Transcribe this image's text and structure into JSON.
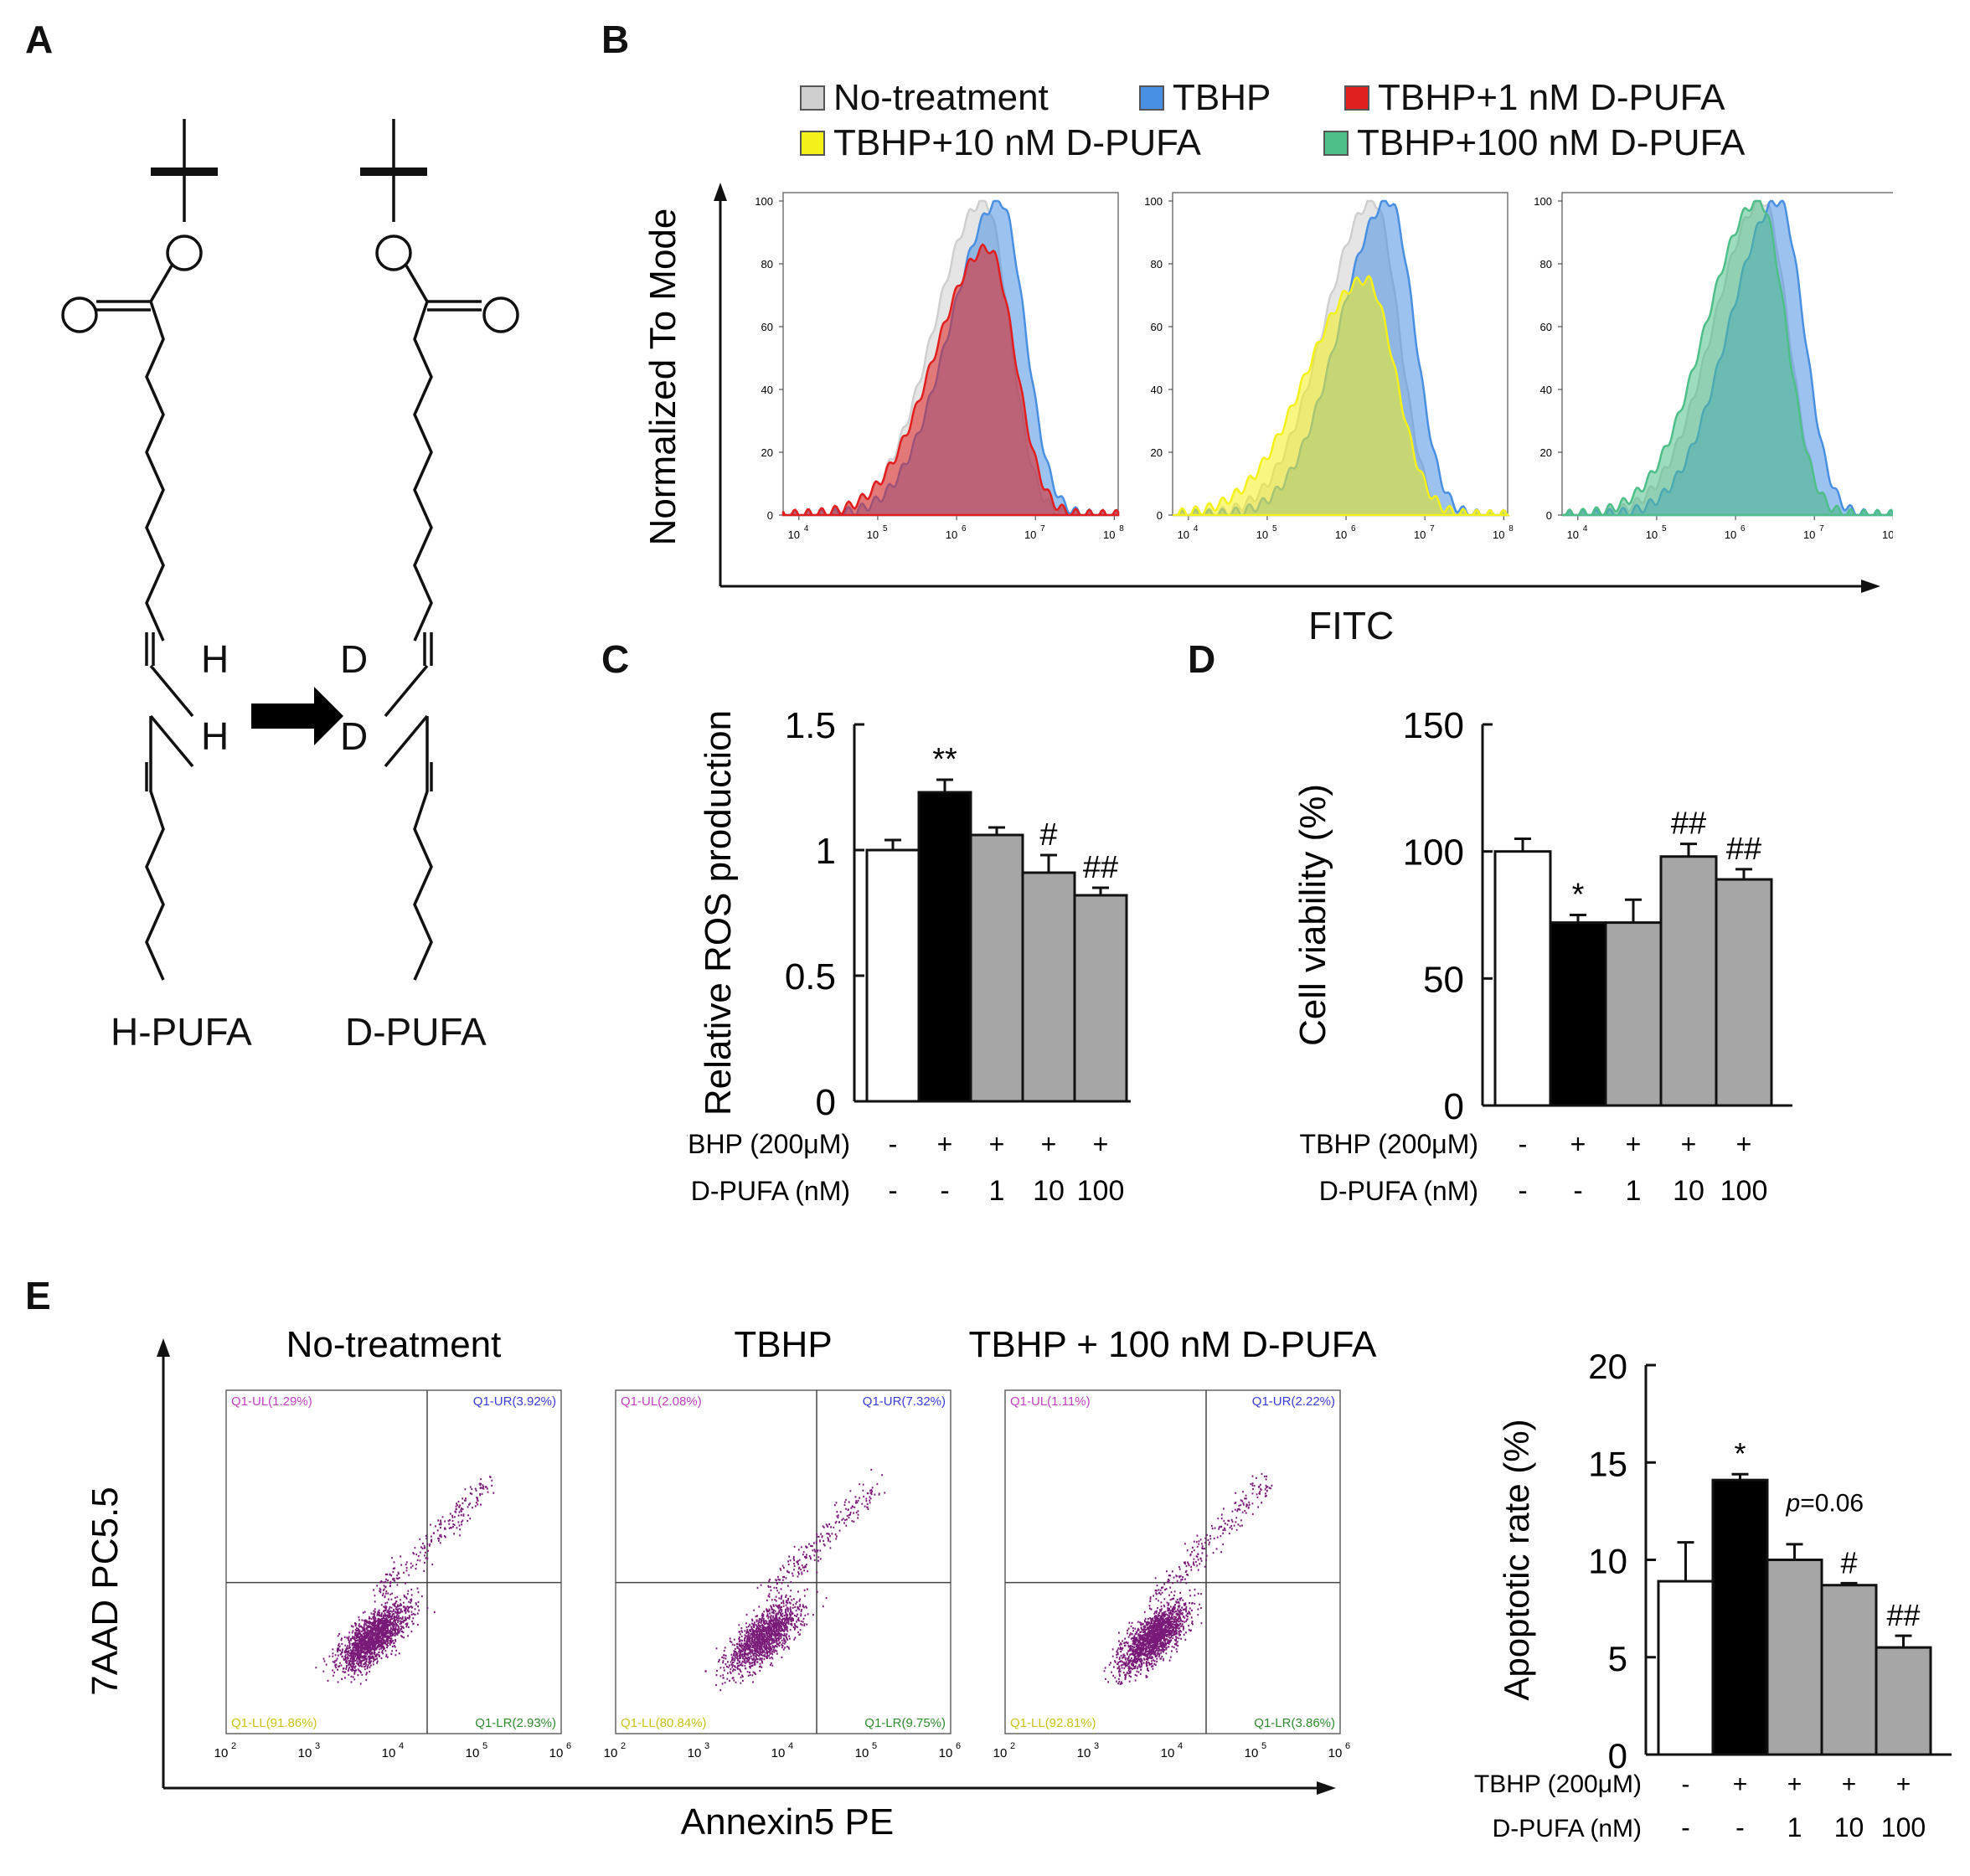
{
  "panels": {
    "A": "A",
    "B": "B",
    "C": "C",
    "D": "D",
    "E": "E"
  },
  "panel_a": {
    "h_label": "H",
    "d_label": "D",
    "left_name": "H-PUFA",
    "right_name": "D-PUFA"
  },
  "legend": {
    "items": [
      {
        "label": "No-treatment",
        "color": "#cfcfcf"
      },
      {
        "label": "TBHP",
        "color": "#4a90e2"
      },
      {
        "label": "TBHP+1 nM D-PUFA",
        "color": "#e11f1f"
      },
      {
        "label": "TBHP+10 nM D-PUFA",
        "color": "#f4f11a"
      },
      {
        "label": "TBHP+100 nM D-PUFA",
        "color": "#4fbf8a"
      }
    ]
  },
  "panel_b": {
    "ylabel": "Normalized To Mode",
    "xlabel": "FITC",
    "yticks": [
      "0",
      "20",
      "40",
      "60",
      "80",
      "100"
    ],
    "xticks": [
      "10",
      "10",
      "10",
      "10",
      "10"
    ],
    "xtick_exponents": [
      "4",
      "5",
      "6",
      "7",
      "8"
    ]
  },
  "treatment_table": {
    "row1_label": "TBHP (200μM)",
    "row2_label": "D-PUFA (nM)",
    "row1": [
      "-",
      "+",
      "+",
      "+",
      "+"
    ],
    "row2": [
      "-",
      "-",
      "1",
      "10",
      "100"
    ]
  },
  "chart_data": [
    {
      "type": "bar",
      "panel": "C",
      "ylabel": "Relative ROS production",
      "categories": [
        "No-treatment",
        "TBHP",
        "TBHP+1 nM",
        "TBHP+10 nM",
        "TBHP+100 nM"
      ],
      "values": [
        1.0,
        1.23,
        1.06,
        0.91,
        0.82
      ],
      "errors": [
        0.04,
        0.05,
        0.03,
        0.07,
        0.03
      ],
      "significance": [
        "",
        "**",
        "",
        "#",
        "##"
      ],
      "ylim": [
        0,
        1.5
      ],
      "ytick_values": [
        0,
        0.5,
        1,
        1.5
      ],
      "yticks": [
        "0",
        "0.5",
        "1",
        "1.5"
      ],
      "colors": [
        "#ffffff",
        "#000000",
        "#a6a6a6",
        "#a6a6a6",
        "#a6a6a6"
      ]
    },
    {
      "type": "bar",
      "panel": "D",
      "ylabel": "Cell viability (%)",
      "categories": [
        "No-treatment",
        "TBHP",
        "TBHP+1 nM",
        "TBHP+10 nM",
        "TBHP+100 nM"
      ],
      "values": [
        100,
        72,
        72,
        98,
        89
      ],
      "errors": [
        5,
        3,
        9,
        5,
        4
      ],
      "significance": [
        "",
        "*",
        "",
        "##",
        "##"
      ],
      "ylim": [
        0,
        150
      ],
      "ytick_values": [
        0,
        50,
        100,
        150
      ],
      "yticks": [
        "0",
        "50",
        "100",
        "150"
      ],
      "colors": [
        "#ffffff",
        "#000000",
        "#a6a6a6",
        "#a6a6a6",
        "#a6a6a6"
      ]
    },
    {
      "type": "bar",
      "panel": "E",
      "ylabel": "Apoptotic rate (%)",
      "categories": [
        "No-treatment",
        "TBHP",
        "TBHP+1 nM",
        "TBHP+10 nM",
        "TBHP+100 nM"
      ],
      "values": [
        8.9,
        14.1,
        10.0,
        8.7,
        5.5
      ],
      "errors": [
        2.0,
        0.3,
        0.8,
        0.1,
        0.6
      ],
      "significance": [
        "",
        "*",
        "",
        "#",
        "##"
      ],
      "ylim": [
        0,
        20
      ],
      "ytick_values": [
        0,
        5,
        10,
        15,
        20
      ],
      "yticks": [
        "0",
        "5",
        "10",
        "15",
        "20"
      ],
      "colors": [
        "#ffffff",
        "#000000",
        "#a6a6a6",
        "#a6a6a6",
        "#a6a6a6"
      ],
      "annotation_italic": "p",
      "annotation": "=0.06"
    },
    {
      "type": "histogram",
      "panel": "B",
      "note": "Flow cytometry histograms, FITC (log) vs normalized to mode",
      "subplots": [
        {
          "series": [
            {
              "name": "No-treatment",
              "peak_log": 6.35,
              "peak": 100,
              "width": 0.42
            },
            {
              "name": "TBHP",
              "peak_log": 6.55,
              "peak": 100,
              "width": 0.42
            },
            {
              "name": "TBHP+1 nM D-PUFA",
              "peak_log": 6.4,
              "peak": 85,
              "width": 0.45
            }
          ]
        },
        {
          "series": [
            {
              "name": "No-treatment",
              "peak_log": 6.35,
              "peak": 100,
              "width": 0.42
            },
            {
              "name": "TBHP",
              "peak_log": 6.55,
              "peak": 100,
              "width": 0.42
            },
            {
              "name": "TBHP+10 nM D-PUFA",
              "peak_log": 6.25,
              "peak": 75,
              "width": 0.5
            }
          ]
        },
        {
          "series": [
            {
              "name": "No-treatment",
              "peak_log": 6.35,
              "peak": 100,
              "width": 0.42
            },
            {
              "name": "TBHP",
              "peak_log": 6.55,
              "peak": 100,
              "width": 0.42
            },
            {
              "name": "TBHP+100 nM D-PUFA",
              "peak_log": 6.3,
              "peak": 100,
              "width": 0.45
            }
          ]
        }
      ]
    },
    {
      "type": "scatter",
      "panel": "E",
      "xlabel": "Annexin5 PE",
      "ylabel": "7AAD PC5.5",
      "xticks": [
        "10",
        "10",
        "10",
        "10",
        "10"
      ],
      "xtick_exponents": [
        "2",
        "3",
        "4",
        "5",
        "6"
      ],
      "plots": [
        {
          "title": "No-treatment",
          "ul": "Q1-UL(1.29%)",
          "ur": "Q1-UR(3.92%)",
          "ll": "Q1-LL(91.86%)",
          "lr": "Q1-LR(2.93%)"
        },
        {
          "title": "TBHP",
          "ul": "Q1-UL(2.08%)",
          "ur": "Q1-UR(7.32%)",
          "ll": "Q1-LL(80.84%)",
          "lr": "Q1-LR(9.75%)"
        },
        {
          "title": "TBHP + 100 nM D-PUFA",
          "ul": "Q1-UL(1.11%)",
          "ur": "Q1-UR(2.22%)",
          "ll": "Q1-LL(92.81%)",
          "lr": "Q1-LR(3.86%)"
        }
      ]
    }
  ]
}
